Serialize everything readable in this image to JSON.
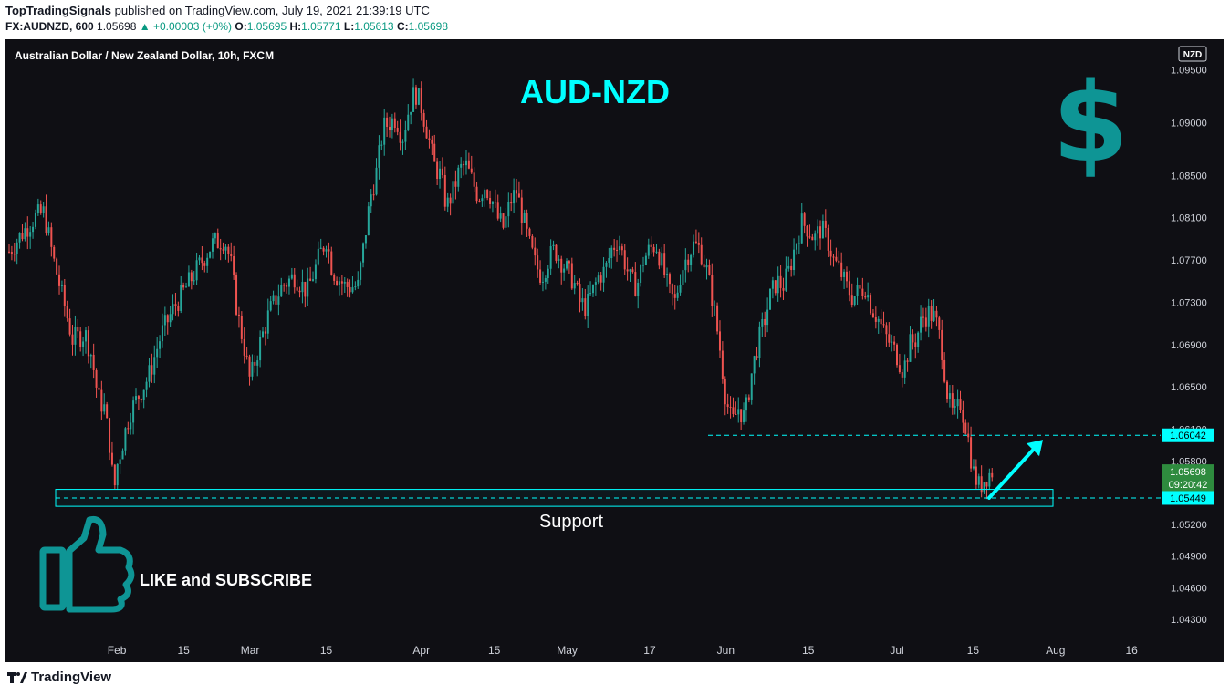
{
  "header": {
    "publisher": "TopTradingSignals",
    "published_text": "published on TradingView.com, July 19, 2021 21:39:19 UTC",
    "symbol": "FX:AUDNZD, 600",
    "last": "1.05698",
    "change": "▲ +0.00003 (+0%)",
    "o_label": "O:",
    "o": "1.05695",
    "h_label": "H:",
    "h": "1.05771",
    "l_label": "L:",
    "l": "1.05613",
    "c_label": "C:",
    "c": "1.05698"
  },
  "chart_title_small": "Australian Dollar / New Zealand Dollar, 10h, FXCM",
  "currency_badge": "NZD",
  "annotations": {
    "big_title": "AUD-NZD",
    "dollar": "$",
    "support": "Support",
    "like": "LIKE and SUBSCRIBE"
  },
  "price_tags": {
    "resistance": "1.06042",
    "current": "1.05698",
    "countdown": "09:20:42",
    "support": "1.05449"
  },
  "footer": {
    "logo_text": "TradingView"
  },
  "colors": {
    "bg": "#0f0f14",
    "up": "#26a69a",
    "down": "#ef5350",
    "cyan": "#00ffff",
    "teal_text": "#0e9595",
    "axis_text": "#d1d4dc",
    "current_tag": "#2e8b3e"
  },
  "chart_data": {
    "type": "candlestick",
    "title": "Australian Dollar / New Zealand Dollar, 10h, FXCM",
    "ylim": [
      1.0412,
      1.0978
    ],
    "y_ticks": [
      "1.09500",
      "1.09000",
      "1.08500",
      "1.08100",
      "1.07700",
      "1.07300",
      "1.06900",
      "1.06500",
      "1.06100",
      "1.05800",
      "1.05200",
      "1.04900",
      "1.04600",
      "1.04300"
    ],
    "x_ticks": [
      "Feb",
      "15",
      "Mar",
      "15",
      "Apr",
      "15",
      "May",
      "17",
      "Jun",
      "15",
      "Jul",
      "15",
      "Aug",
      "16"
    ],
    "resistance_level": 1.06042,
    "support_level": 1.05449,
    "support_zone": [
      1.0537,
      1.0553
    ],
    "arrow_from": 1.0545,
    "arrow_to": 1.06,
    "close_path": [
      {
        "d": 0,
        "c": 1.0778
      },
      {
        "d": 2,
        "c": 1.0795
      },
      {
        "d": 4,
        "c": 1.081
      },
      {
        "d": 5.5,
        "c": 1.0815
      },
      {
        "d": 7,
        "c": 1.077
      },
      {
        "d": 9,
        "c": 1.072
      },
      {
        "d": 10,
        "c": 1.0695
      },
      {
        "d": 12,
        "c": 1.07
      },
      {
        "d": 13,
        "c": 1.068
      },
      {
        "d": 14,
        "c": 1.064
      },
      {
        "d": 15,
        "c": 1.063
      },
      {
        "d": 16,
        "c": 1.059
      },
      {
        "d": 16.5,
        "c": 1.0548
      },
      {
        "d": 17,
        "c": 1.0575
      },
      {
        "d": 19,
        "c": 1.0625
      },
      {
        "d": 22,
        "c": 1.066
      },
      {
        "d": 24,
        "c": 1.07
      },
      {
        "d": 26,
        "c": 1.0725
      },
      {
        "d": 28,
        "c": 1.0745
      },
      {
        "d": 30,
        "c": 1.0765
      },
      {
        "d": 32,
        "c": 1.0785
      },
      {
        "d": 34,
        "c": 1.079
      },
      {
        "d": 35,
        "c": 1.0765
      },
      {
        "d": 36,
        "c": 1.072
      },
      {
        "d": 37,
        "c": 1.069
      },
      {
        "d": 38,
        "c": 1.0655
      },
      {
        "d": 39,
        "c": 1.068
      },
      {
        "d": 41,
        "c": 1.072
      },
      {
        "d": 43,
        "c": 1.0745
      },
      {
        "d": 45,
        "c": 1.0755
      },
      {
        "d": 47,
        "c": 1.074
      },
      {
        "d": 49,
        "c": 1.0775
      },
      {
        "d": 50,
        "c": 1.079
      },
      {
        "d": 51,
        "c": 1.076
      },
      {
        "d": 53,
        "c": 1.0745
      },
      {
        "d": 55,
        "c": 1.0745
      },
      {
        "d": 57,
        "c": 1.083
      },
      {
        "d": 58,
        "c": 1.0855
      },
      {
        "d": 59,
        "c": 1.0895
      },
      {
        "d": 60,
        "c": 1.09
      },
      {
        "d": 61,
        "c": 1.0905
      },
      {
        "d": 62,
        "c": 1.0885
      },
      {
        "d": 63,
        "c": 1.0912
      },
      {
        "d": 64,
        "c": 1.093
      },
      {
        "d": 65,
        "c": 1.0915
      },
      {
        "d": 66,
        "c": 1.089
      },
      {
        "d": 67,
        "c": 1.086
      },
      {
        "d": 68,
        "c": 1.085
      },
      {
        "d": 69,
        "c": 1.082
      },
      {
        "d": 70,
        "c": 1.0835
      },
      {
        "d": 71,
        "c": 1.0855
      },
      {
        "d": 72,
        "c": 1.086
      },
      {
        "d": 73,
        "c": 1.0845
      },
      {
        "d": 74,
        "c": 1.083
      },
      {
        "d": 75,
        "c": 1.084
      },
      {
        "d": 76,
        "c": 1.083
      },
      {
        "d": 77,
        "c": 1.081
      },
      {
        "d": 78,
        "c": 1.08
      },
      {
        "d": 79,
        "c": 1.0825
      },
      {
        "d": 80,
        "c": 1.0835
      },
      {
        "d": 81,
        "c": 1.081
      },
      {
        "d": 82,
        "c": 1.0785
      },
      {
        "d": 83,
        "c": 1.0765
      },
      {
        "d": 84,
        "c": 1.0755
      },
      {
        "d": 85,
        "c": 1.077
      },
      {
        "d": 86,
        "c": 1.078
      },
      {
        "d": 88,
        "c": 1.076
      },
      {
        "d": 89,
        "c": 1.075
      },
      {
        "d": 90,
        "c": 1.073
      },
      {
        "d": 91,
        "c": 1.0725
      },
      {
        "d": 92,
        "c": 1.074
      },
      {
        "d": 93,
        "c": 1.0755
      },
      {
        "d": 94,
        "c": 1.076
      },
      {
        "d": 95,
        "c": 1.078
      },
      {
        "d": 96,
        "c": 1.079
      },
      {
        "d": 97,
        "c": 1.077
      },
      {
        "d": 98,
        "c": 1.075
      },
      {
        "d": 99,
        "c": 1.0745
      },
      {
        "d": 100,
        "c": 1.077
      },
      {
        "d": 101,
        "c": 1.078
      },
      {
        "d": 102,
        "c": 1.0785
      },
      {
        "d": 103,
        "c": 1.0765
      },
      {
        "d": 104,
        "c": 1.074
      },
      {
        "d": 105,
        "c": 1.073
      },
      {
        "d": 106,
        "c": 1.076
      },
      {
        "d": 107,
        "c": 1.0775
      },
      {
        "d": 108,
        "c": 1.0785
      },
      {
        "d": 109,
        "c": 1.078
      },
      {
        "d": 110,
        "c": 1.076
      },
      {
        "d": 111,
        "c": 1.073
      },
      {
        "d": 112,
        "c": 1.069
      },
      {
        "d": 113,
        "c": 1.064
      },
      {
        "d": 114,
        "c": 1.0615
      },
      {
        "d": 115,
        "c": 1.063
      },
      {
        "d": 116,
        "c": 1.062
      },
      {
        "d": 117,
        "c": 1.066
      },
      {
        "d": 118,
        "c": 1.069
      },
      {
        "d": 119,
        "c": 1.071
      },
      {
        "d": 120,
        "c": 1.0735
      },
      {
        "d": 121,
        "c": 1.075
      },
      {
        "d": 122,
        "c": 1.0745
      },
      {
        "d": 123,
        "c": 1.076
      },
      {
        "d": 124,
        "c": 1.0785
      },
      {
        "d": 125,
        "c": 1.0805
      },
      {
        "d": 126,
        "c": 1.08
      },
      {
        "d": 127,
        "c": 1.079
      },
      {
        "d": 128,
        "c": 1.08
      },
      {
        "d": 129,
        "c": 1.079
      },
      {
        "d": 130,
        "c": 1.077
      },
      {
        "d": 131,
        "c": 1.076
      },
      {
        "d": 132,
        "c": 1.0745
      },
      {
        "d": 133,
        "c": 1.0735
      },
      {
        "d": 134,
        "c": 1.074
      },
      {
        "d": 135,
        "c": 1.0745
      },
      {
        "d": 136,
        "c": 1.0725
      },
      {
        "d": 137,
        "c": 1.0715
      },
      {
        "d": 138,
        "c": 1.07
      },
      {
        "d": 139,
        "c": 1.069
      },
      {
        "d": 140,
        "c": 1.068
      },
      {
        "d": 141,
        "c": 1.0665
      },
      {
        "d": 142,
        "c": 1.069
      },
      {
        "d": 143,
        "c": 1.0695
      },
      {
        "d": 144,
        "c": 1.0715
      },
      {
        "d": 145,
        "c": 1.072
      },
      {
        "d": 146,
        "c": 1.0715
      },
      {
        "d": 147,
        "c": 1.069
      },
      {
        "d": 148,
        "c": 1.064
      },
      {
        "d": 149,
        "c": 1.062
      },
      {
        "d": 150,
        "c": 1.0635
      },
      {
        "d": 151,
        "c": 1.061
      },
      {
        "d": 152,
        "c": 1.057
      },
      {
        "d": 153,
        "c": 1.0555
      },
      {
        "d": 154,
        "c": 1.0565
      },
      {
        "d": 155,
        "c": 1.057
      }
    ]
  }
}
